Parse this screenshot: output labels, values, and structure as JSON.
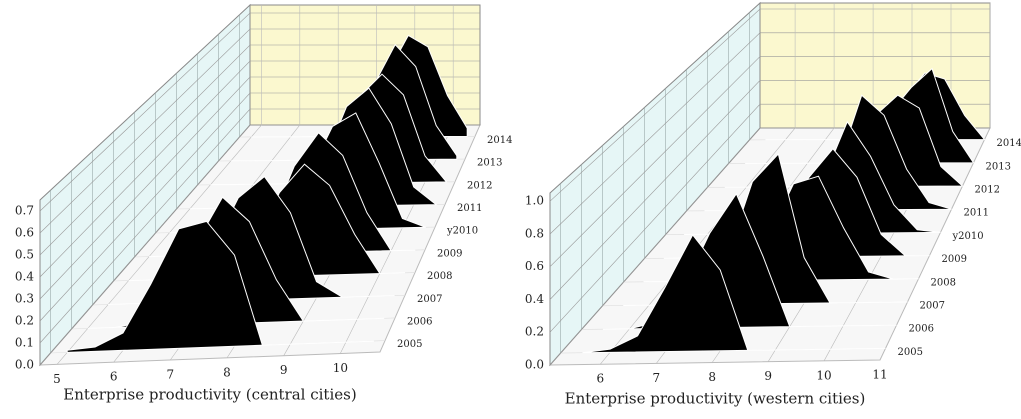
{
  "chart_data": [
    {
      "type": "ridgeline",
      "x_label": "Enterprise productivity (central cities)",
      "color": "#000000",
      "grid": true,
      "xlim": [
        4.7,
        10.7
      ],
      "xticks": [
        5,
        6,
        7,
        8,
        9,
        10
      ],
      "zlim": [
        0,
        0.75
      ],
      "zticks": [
        {
          "value": 0,
          "label": "0.0"
        },
        0.1,
        0.2,
        0.3,
        0.4,
        0.5,
        0.6,
        0.7
      ],
      "x": [
        5,
        5.5,
        6,
        6.5,
        7,
        7.5,
        8,
        8.5,
        9,
        9.5,
        10,
        10.5
      ],
      "series": [
        {
          "name": "2005",
          "values": [
            0.01,
            0.02,
            0.08,
            0.3,
            0.55,
            0.58,
            0.42,
            0,
            0,
            0,
            0,
            0
          ]
        },
        {
          "name": "2006",
          "values": [
            0,
            0,
            0.02,
            0.1,
            0.38,
            0.6,
            0.48,
            0.2,
            0,
            0,
            0,
            0
          ]
        },
        {
          "name": "2007",
          "values": [
            0,
            0,
            0,
            0.05,
            0.25,
            0.5,
            0.6,
            0.42,
            0.08,
            0,
            0,
            0
          ]
        },
        {
          "name": "2008",
          "values": [
            0,
            0,
            0,
            0,
            0.03,
            0.12,
            0.42,
            0.56,
            0.45,
            0.2,
            0,
            0
          ]
        },
        {
          "name": "2009",
          "values": [
            0,
            0,
            0,
            0,
            0.03,
            0.15,
            0.45,
            0.62,
            0.5,
            0.2,
            0,
            0
          ]
        },
        {
          "name": "y2010",
          "values": [
            0,
            0,
            0,
            0,
            0,
            0.05,
            0.3,
            0.55,
            0.62,
            0.35,
            0.05,
            0
          ]
        },
        {
          "name": "2011",
          "values": [
            0,
            0,
            0,
            0,
            0,
            0.05,
            0.25,
            0.55,
            0.65,
            0.45,
            0.1,
            0
          ]
        },
        {
          "name": "2012",
          "values": [
            0,
            0,
            0,
            0,
            0,
            0.03,
            0.2,
            0.5,
            0.62,
            0.5,
            0.15,
            0
          ]
        },
        {
          "name": "2013",
          "values": [
            0,
            0,
            0,
            0,
            0,
            0.02,
            0.15,
            0.45,
            0.68,
            0.55,
            0.2,
            0.02
          ]
        },
        {
          "name": "2014",
          "values": [
            0,
            0,
            0,
            0,
            0,
            0.02,
            0.15,
            0.4,
            0.62,
            0.55,
            0.25,
            0.05
          ]
        }
      ]
    },
    {
      "type": "ridgeline",
      "x_label": "Enterprise productivity (western cities)",
      "color": "#000000",
      "grid": true,
      "xlim": [
        5.1,
        11
      ],
      "xticks": [
        6,
        7,
        8,
        9,
        10,
        11
      ],
      "zlim": [
        0,
        1.05
      ],
      "zticks": [
        {
          "value": 0,
          "label": "0.0"
        },
        0.2,
        0.4,
        0.6,
        0.8,
        {
          "value": 1,
          "label": "1.0"
        }
      ],
      "x": [
        5.5,
        6,
        6.5,
        7,
        7.5,
        8,
        8.5,
        9,
        9.5,
        10,
        10.5,
        11
      ],
      "series": [
        {
          "name": "2005",
          "values": [
            0,
            0.02,
            0.1,
            0.4,
            0.72,
            0.5,
            0,
            0,
            0,
            0,
            0,
            0
          ]
        },
        {
          "name": "2006",
          "values": [
            0,
            0,
            0.04,
            0.25,
            0.6,
            0.85,
            0.45,
            0,
            0,
            0,
            0,
            0
          ]
        },
        {
          "name": "2007",
          "values": [
            0,
            0,
            0,
            0.05,
            0.3,
            0.8,
            0.98,
            0.3,
            0,
            0,
            0,
            0
          ]
        },
        {
          "name": "2008",
          "values": [
            0,
            0,
            0,
            0,
            0.05,
            0.3,
            0.65,
            0.7,
            0.35,
            0.05,
            0,
            0
          ]
        },
        {
          "name": "2009",
          "values": [
            0,
            0,
            0,
            0,
            0.02,
            0.2,
            0.55,
            0.75,
            0.55,
            0.15,
            0,
            0
          ]
        },
        {
          "name": "y2010",
          "values": [
            0,
            0,
            0,
            0,
            0,
            0.1,
            0.4,
            0.8,
            0.55,
            0.2,
            0.02,
            0
          ]
        },
        {
          "name": "2011",
          "values": [
            0,
            0,
            0,
            0,
            0,
            0.05,
            0.35,
            0.85,
            0.7,
            0.3,
            0.05,
            0
          ]
        },
        {
          "name": "2012",
          "values": [
            0,
            0,
            0,
            0,
            0,
            0.02,
            0.2,
            0.55,
            0.7,
            0.6,
            0.15,
            0
          ]
        },
        {
          "name": "2013",
          "values": [
            0,
            0,
            0,
            0,
            0,
            0,
            0.1,
            0.4,
            0.6,
            0.75,
            0.25,
            0
          ]
        },
        {
          "name": "2014",
          "values": [
            0,
            0,
            0,
            0,
            0,
            0,
            0.05,
            0.35,
            0.55,
            0.5,
            0.2,
            0
          ]
        }
      ]
    }
  ]
}
